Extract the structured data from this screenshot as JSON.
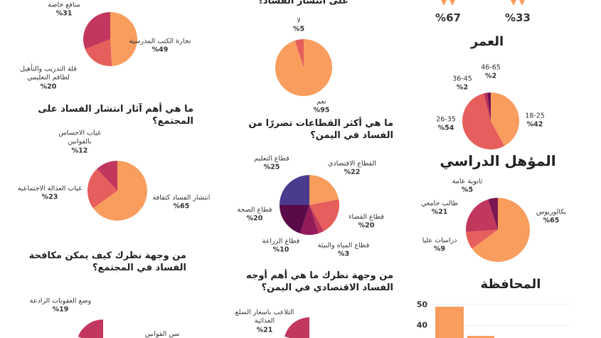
{
  "chart_data": [
    {
      "type": "stat",
      "values": [
        67,
        33
      ],
      "value_labels": [
        "%67",
        "%33"
      ],
      "color": "#f79a5b"
    },
    {
      "type": "pie",
      "title": "العمر",
      "categories": [
        "18-25",
        "26-35",
        "36-45",
        "46-65"
      ],
      "values": [
        42,
        54,
        2,
        2
      ],
      "value_labels": [
        "%42",
        "%54",
        "%2",
        "%2"
      ],
      "colors": [
        "#f99d5e",
        "#e65f5c",
        "#b8305b",
        "#6e1150"
      ]
    },
    {
      "type": "pie",
      "title": "المؤهل الدراسي",
      "categories": [
        "بكالوريوس",
        "دراسات عليا",
        "طالب جامعي",
        "ثانوية عامة"
      ],
      "values": [
        65,
        9,
        21,
        5
      ],
      "value_labels": [
        "%65",
        "%9",
        "%21",
        "%5"
      ],
      "colors": [
        "#f99d5e",
        "#e65f5c",
        "#c2375d",
        "#7a1652"
      ]
    },
    {
      "type": "bar",
      "title": "المحافظة",
      "categories": [
        null,
        null
      ],
      "values": [
        49,
        35
      ],
      "color": "#f99d5e",
      "ylim": [
        34,
        50
      ],
      "yticks": [
        40,
        50
      ]
    },
    {
      "type": "pie",
      "title": "على انتشار الفساد؟",
      "categories": [
        "نعم",
        "لا"
      ],
      "values": [
        95,
        5
      ],
      "value_labels": [
        "%95",
        "%5"
      ],
      "colors": [
        "#f99d5e",
        "#e65f5c"
      ]
    },
    {
      "type": "pie",
      "title": "ما هي أكثر القطاعات تضررًا من الفساد في اليمن؟",
      "categories": [
        "القطاع الاقتصادي",
        "قطاع القضاء",
        "قطاع المياه والبيئة",
        "قطاع الزراعة",
        "قطاع الصحة",
        "قطاع التعليم"
      ],
      "values": [
        22,
        20,
        3,
        10,
        20,
        25
      ],
      "value_labels": [
        "%22",
        "%20",
        "%3",
        "%10",
        "%20",
        "%25"
      ],
      "colors": [
        "#f99d5e",
        "#e65f5c",
        "#c2375d",
        "#931b59",
        "#5a0a48",
        "#4a3b8e"
      ]
    },
    {
      "type": "pie",
      "title": "من وجهة نظرك ما هي أهم أوجه الفساد الاقتصادي في اليمن؟",
      "categories": [
        "التلاعب باسعار السلع الغذائية"
      ],
      "values": [
        21
      ],
      "value_labels": [
        "%21"
      ],
      "colors": [
        "#c2375d"
      ]
    },
    {
      "type": "pie",
      "categories": [
        "تجارة الكتب المدرسية",
        "قلة التدريب والتأهيل لطاقم التعليمي",
        "منافع خاصة"
      ],
      "values": [
        49,
        20,
        31
      ],
      "value_labels": [
        "%49",
        "%20",
        "%31"
      ],
      "colors": [
        "#f99d5e",
        "#e65f5c",
        "#c2375d"
      ]
    },
    {
      "type": "pie",
      "title": "ما هي أهم آثار انتشار الفساد على المجتمع؟",
      "categories": [
        "انتشار الفساد كثقافة",
        "غياب العدالة الاجتماعية",
        "غياب الاحساس بالقوانين"
      ],
      "values": [
        65,
        23,
        12
      ],
      "value_labels": [
        "%65",
        "%23",
        "%12"
      ],
      "colors": [
        "#f99d5e",
        "#e65f5c",
        "#c2375d"
      ]
    },
    {
      "type": "pie",
      "title": "من وجهة نظرك كيف يمكن مكافحة الفساد في المجتمع؟",
      "categories": [
        "وضع العقوبات الرادعة",
        "سن القوانين"
      ],
      "values": [
        19,
        null
      ],
      "value_labels": [
        "%19",
        null
      ],
      "colors": [
        "#c2375d",
        "#f99d5e"
      ]
    }
  ]
}
